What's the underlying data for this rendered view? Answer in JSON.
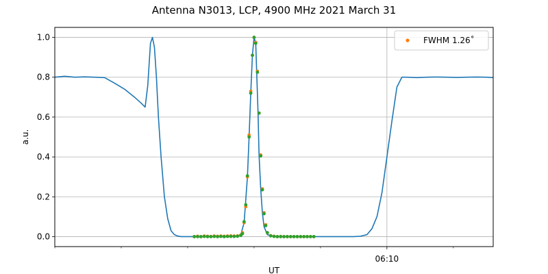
{
  "chart_data": {
    "type": "line",
    "title": "Antenna N3013, LCP, 4900 MHz 2021 March 31",
    "xlabel": "UT",
    "ylabel": "a.u.",
    "x_unit": "minutes UT",
    "xlim": [
      360.0,
      373.2
    ],
    "ylim": [
      -0.05,
      1.05
    ],
    "y_ticks": [
      0.0,
      0.2,
      0.4,
      0.6,
      0.8,
      1.0
    ],
    "x_major_ticks": [
      {
        "value": 370.0,
        "label": "06:10"
      }
    ],
    "x_minor_ticks": [
      360.0,
      362.0,
      364.0,
      366.0,
      368.0,
      372.0
    ],
    "grid": true,
    "legend": {
      "placement": "top-right",
      "entries": [
        {
          "label": "FWHM 1.26$^\\circ$",
          "text": "FWHM 1.26˚",
          "color": "#ff7f0e"
        }
      ]
    },
    "series": [
      {
        "kind": "line",
        "color": "#1f77b4",
        "x": [
          360.0,
          360.3,
          360.6,
          360.9,
          361.2,
          361.5,
          361.8,
          362.1,
          362.4,
          362.6,
          362.72,
          362.8,
          362.88,
          362.94,
          363.0,
          363.06,
          363.12,
          363.2,
          363.3,
          363.4,
          363.5,
          363.6,
          363.7,
          363.8,
          363.9,
          364.1,
          364.3,
          364.6,
          364.9,
          365.2,
          365.5,
          365.6,
          365.7,
          365.8,
          365.85,
          365.9,
          365.95,
          366.0,
          366.05,
          366.08,
          366.12,
          366.15,
          366.2,
          366.25,
          366.3,
          366.4,
          366.6,
          366.9,
          367.2,
          367.5,
          367.8,
          368.1,
          368.4,
          368.7,
          369.0,
          369.2,
          369.4,
          369.55,
          369.7,
          369.85,
          370.0,
          370.15,
          370.3,
          370.45,
          370.6,
          370.9,
          371.2,
          371.5,
          371.8,
          372.1,
          372.4,
          372.7,
          373.0,
          373.2
        ],
        "y": [
          0.8,
          0.805,
          0.8,
          0.802,
          0.8,
          0.798,
          0.77,
          0.74,
          0.7,
          0.67,
          0.65,
          0.76,
          0.97,
          1.0,
          0.95,
          0.8,
          0.6,
          0.4,
          0.2,
          0.09,
          0.03,
          0.01,
          0.003,
          0.0,
          0.0,
          0.0,
          0.0,
          0.0,
          0.0,
          0.0,
          0.002,
          0.01,
          0.07,
          0.3,
          0.5,
          0.72,
          0.91,
          1.0,
          0.97,
          0.82,
          0.62,
          0.41,
          0.24,
          0.12,
          0.05,
          0.01,
          0.0,
          0.0,
          0.0,
          0.0,
          0.0,
          0.0,
          0.0,
          0.0,
          0.0,
          0.002,
          0.01,
          0.04,
          0.1,
          0.22,
          0.4,
          0.58,
          0.75,
          0.8,
          0.8,
          0.798,
          0.8,
          0.801,
          0.8,
          0.799,
          0.8,
          0.801,
          0.8,
          0.798
        ]
      },
      {
        "kind": "scatter",
        "color": "#ff7f0e",
        "x": [
          364.2,
          364.3,
          364.4,
          364.5,
          364.6,
          364.7,
          364.8,
          364.9,
          365.0,
          365.1,
          365.2,
          365.3,
          365.4,
          365.5,
          365.6,
          365.65,
          365.7,
          365.75,
          365.8,
          365.85,
          365.9,
          365.95,
          366.0,
          366.05,
          366.1,
          366.15,
          366.2,
          366.25,
          366.3,
          366.35,
          366.4,
          366.5,
          366.6,
          366.7,
          366.8,
          366.9,
          367.0,
          367.1,
          367.2,
          367.3,
          367.4,
          367.5,
          367.6,
          367.7,
          367.8
        ],
        "y": [
          0.0,
          0.002,
          0.0,
          0.003,
          0.002,
          0.001,
          0.003,
          0.002,
          0.003,
          0.002,
          0.003,
          0.004,
          0.003,
          0.004,
          0.008,
          0.02,
          0.07,
          0.15,
          0.3,
          0.51,
          0.73,
          0.91,
          1.0,
          0.975,
          0.83,
          0.62,
          0.41,
          0.24,
          0.12,
          0.06,
          0.02,
          0.005,
          0.002,
          0.0,
          0.001,
          0.0,
          0.0,
          0.0,
          0.0,
          0.0,
          0.0,
          0.0,
          0.0,
          0.0,
          0.0
        ]
      },
      {
        "kind": "scatter",
        "color": "#2ca02c",
        "x": [
          364.2,
          364.3,
          364.4,
          364.5,
          364.6,
          364.7,
          364.8,
          364.9,
          365.0,
          365.1,
          365.2,
          365.3,
          365.4,
          365.5,
          365.6,
          365.65,
          365.7,
          365.75,
          365.8,
          365.85,
          365.9,
          365.95,
          366.0,
          366.05,
          366.1,
          366.15,
          366.2,
          366.25,
          366.3,
          366.35,
          366.4,
          366.5,
          366.6,
          366.7,
          366.8,
          366.9,
          367.0,
          367.1,
          367.2,
          367.3,
          367.4,
          367.5,
          367.6,
          367.7,
          367.8
        ],
        "y": [
          0.0,
          0.0,
          0.0,
          0.001,
          0.0,
          0.0,
          0.001,
          0.0,
          0.001,
          0.0,
          0.001,
          0.001,
          0.001,
          0.002,
          0.006,
          0.015,
          0.075,
          0.16,
          0.305,
          0.5,
          0.72,
          0.91,
          1.0,
          0.97,
          0.825,
          0.62,
          0.405,
          0.235,
          0.115,
          0.055,
          0.02,
          0.004,
          0.001,
          0.0,
          0.0,
          0.0,
          0.0,
          0.0,
          0.0,
          0.0,
          0.0,
          0.0,
          0.0,
          0.0,
          0.0
        ]
      }
    ]
  }
}
